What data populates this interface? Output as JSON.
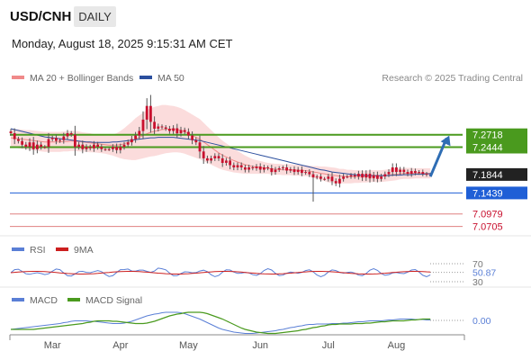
{
  "header": {
    "symbol": "USD/CNH",
    "timeframe": "DAILY",
    "datetime": "Monday, August 18, 2025 9:15:31 AM CET"
  },
  "legend": {
    "ma20_bb_label": "MA 20 + Bollinger Bands",
    "ma50_label": "MA 50",
    "copyright": "Research © 2025 Trading Central"
  },
  "rsi_legend": {
    "rsi": "RSI",
    "ma": "9MA"
  },
  "macd_legend": {
    "macd": "MACD",
    "signal": "MACD Signal"
  },
  "colors": {
    "ma20": "#f08a8a",
    "ma50": "#2b4f9e",
    "bb_fill": "#fbdcdc",
    "candle": "#c8102e",
    "resistance": "#4a9a1e",
    "support_blue": "#1f5fd6",
    "support_red": "#e08080",
    "last_price_bg": "#222222",
    "rsi": "#5a7fd6",
    "rsi_ma": "#cc1f1f",
    "macd": "#5a7fd6",
    "macd_signal": "#4a9a1e",
    "arrow": "#2e6db4"
  },
  "icons": {
    "forecast_arrow": "arrow-up-right-icon"
  },
  "chart_data": [
    {
      "type": "candlestick",
      "title": "",
      "x_labels": [
        "Mar",
        "Apr",
        "May",
        "Jun",
        "Jul",
        "Aug"
      ],
      "ylim": [
        7.05,
        7.36
      ],
      "levels": [
        {
          "value": 7.2718,
          "label": "7.2718",
          "kind": "resistance"
        },
        {
          "value": 7.2444,
          "label": "7.2444",
          "kind": "resistance"
        },
        {
          "value": 7.1844,
          "label": "7.1844",
          "kind": "last"
        },
        {
          "value": 7.1439,
          "label": "7.1439",
          "kind": "support"
        },
        {
          "value": 7.0979,
          "label": "7.0979",
          "kind": "support"
        },
        {
          "value": 7.0705,
          "label": "7.0705",
          "kind": "support"
        }
      ],
      "close": [
        7.275,
        7.262,
        7.258,
        7.25,
        7.245,
        7.255,
        7.24,
        7.25,
        7.245,
        7.245,
        7.262,
        7.265,
        7.258,
        7.26,
        7.268,
        7.275,
        7.272,
        7.245,
        7.25,
        7.24,
        7.245,
        7.242,
        7.25,
        7.245,
        7.24,
        7.24,
        7.24,
        7.245,
        7.238,
        7.245,
        7.25,
        7.255,
        7.262,
        7.27,
        7.28,
        7.305,
        7.335,
        7.3,
        7.285,
        7.29,
        7.288,
        7.285,
        7.28,
        7.286,
        7.275,
        7.282,
        7.278,
        7.27,
        7.26,
        7.255,
        7.235,
        7.22,
        7.215,
        7.22,
        7.225,
        7.22,
        7.21,
        7.215,
        7.205,
        7.2,
        7.205,
        7.2,
        7.195,
        7.2,
        7.198,
        7.202,
        7.195,
        7.2,
        7.198,
        7.19,
        7.195,
        7.198,
        7.2,
        7.193,
        7.196,
        7.19,
        7.195,
        7.188,
        7.19,
        7.185,
        7.178,
        7.18,
        7.175,
        7.175,
        7.18,
        7.17,
        7.165,
        7.175,
        7.18,
        7.18,
        7.183,
        7.18,
        7.186,
        7.178,
        7.186,
        7.176,
        7.183,
        7.175,
        7.18,
        7.185,
        7.19,
        7.2,
        7.19,
        7.195,
        7.19,
        7.186,
        7.192,
        7.188,
        7.19,
        7.186,
        7.184,
        7.184
      ],
      "ma20": [
        7.265,
        7.264,
        7.263,
        7.262,
        7.261,
        7.26,
        7.259,
        7.258,
        7.257,
        7.256,
        7.256,
        7.256,
        7.256,
        7.256,
        7.257,
        7.257,
        7.258,
        7.258,
        7.257,
        7.256,
        7.255,
        7.254,
        7.253,
        7.252,
        7.251,
        7.25,
        7.249,
        7.249,
        7.249,
        7.25,
        7.252,
        7.255,
        7.258,
        7.262,
        7.266,
        7.27,
        7.274,
        7.277,
        7.279,
        7.281,
        7.283,
        7.284,
        7.284,
        7.284,
        7.283,
        7.281,
        7.278,
        7.274,
        7.27,
        7.266,
        7.262,
        7.256,
        7.25,
        7.244,
        7.238,
        7.232,
        7.227,
        7.223,
        7.219,
        7.215,
        7.212,
        7.209,
        7.206,
        7.204,
        7.202,
        7.201,
        7.2,
        7.199,
        7.198,
        7.197,
        7.196,
        7.196,
        7.195,
        7.195,
        7.195,
        7.194,
        7.194,
        7.193,
        7.193,
        7.192,
        7.19,
        7.189,
        7.187,
        7.186,
        7.184,
        7.183,
        7.182,
        7.181,
        7.181,
        7.18,
        7.18,
        7.18,
        7.18,
        7.18,
        7.18,
        7.181,
        7.181,
        7.181,
        7.181,
        7.182,
        7.183,
        7.184,
        7.185,
        7.186,
        7.187,
        7.187,
        7.187,
        7.187,
        7.187,
        7.187,
        7.187,
        7.187
      ],
      "ma50": [
        7.285,
        7.283,
        7.281,
        7.279,
        7.277,
        7.275,
        7.273,
        7.271,
        7.269,
        7.267,
        7.266,
        7.265,
        7.264,
        7.263,
        7.262,
        7.261,
        7.26,
        7.259,
        7.258,
        7.257,
        7.256,
        7.256,
        7.255,
        7.255,
        7.255,
        7.255,
        7.255,
        7.256,
        7.256,
        7.257,
        7.258,
        7.259,
        7.26,
        7.261,
        7.262,
        7.263,
        7.264,
        7.265,
        7.265,
        7.266,
        7.266,
        7.266,
        7.266,
        7.266,
        7.265,
        7.264,
        7.263,
        7.262,
        7.261,
        7.26,
        7.259,
        7.257,
        7.255,
        7.253,
        7.251,
        7.249,
        7.247,
        7.245,
        7.243,
        7.241,
        7.239,
        7.237,
        7.235,
        7.233,
        7.231,
        7.229,
        7.227,
        7.225,
        7.223,
        7.221,
        7.219,
        7.217,
        7.215,
        7.213,
        7.211,
        7.209,
        7.207,
        7.205,
        7.203,
        7.201,
        7.199,
        7.197,
        7.195,
        7.194,
        7.192,
        7.19,
        7.189,
        7.188,
        7.187,
        7.186,
        7.185,
        7.184,
        7.183,
        7.183,
        7.182,
        7.182,
        7.182,
        7.182,
        7.182,
        7.182,
        7.182,
        7.183,
        7.183,
        7.183,
        7.184,
        7.184,
        7.184,
        7.185,
        7.185,
        7.185,
        7.186,
        7.186
      ],
      "bb_width": [
        0.02,
        0.02,
        0.021,
        0.021,
        0.021,
        0.022,
        0.022,
        0.022,
        0.022,
        0.022,
        0.022,
        0.022,
        0.022,
        0.022,
        0.022,
        0.022,
        0.022,
        0.022,
        0.022,
        0.021,
        0.021,
        0.021,
        0.02,
        0.02,
        0.02,
        0.02,
        0.021,
        0.023,
        0.026,
        0.03,
        0.034,
        0.038,
        0.042,
        0.046,
        0.048,
        0.05,
        0.052,
        0.053,
        0.054,
        0.054,
        0.054,
        0.053,
        0.052,
        0.051,
        0.05,
        0.049,
        0.048,
        0.047,
        0.046,
        0.045,
        0.044,
        0.042,
        0.04,
        0.038,
        0.036,
        0.034,
        0.032,
        0.03,
        0.028,
        0.026,
        0.024,
        0.022,
        0.02,
        0.018,
        0.016,
        0.015,
        0.014,
        0.013,
        0.012,
        0.012,
        0.012,
        0.012,
        0.012,
        0.012,
        0.012,
        0.012,
        0.012,
        0.012,
        0.012,
        0.012,
        0.013,
        0.014,
        0.015,
        0.016,
        0.017,
        0.017,
        0.017,
        0.016,
        0.016,
        0.015,
        0.015,
        0.014,
        0.014,
        0.013,
        0.013,
        0.013,
        0.013,
        0.013,
        0.013,
        0.013,
        0.013,
        0.013,
        0.013,
        0.012,
        0.012,
        0.012,
        0.012,
        0.011,
        0.011,
        0.011,
        0.011,
        0.011
      ],
      "forecast_arrow": {
        "from": [
          111,
          7.18
        ],
        "to": [
          116,
          7.27
        ]
      }
    },
    {
      "type": "line",
      "name": "RSI panel",
      "levels": [
        70,
        50.87,
        30
      ],
      "level_labels": [
        "70",
        "50.87",
        "30"
      ],
      "ylim": [
        20,
        80
      ],
      "rsi_value": 50.87
    },
    {
      "type": "line",
      "name": "MACD panel",
      "level_label": "0.00",
      "zero": 0.0
    }
  ]
}
